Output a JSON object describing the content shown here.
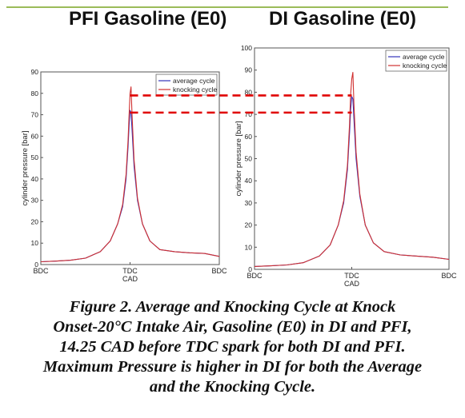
{
  "chart_data": [
    {
      "type": "line",
      "title": "PFI Gasoline (E0)",
      "xlabel": "CAD",
      "ylabel": "cylinder pressure [bar]",
      "x_ticks": [
        "BDC",
        "TDC",
        "BDC"
      ],
      "xlim": [
        -180,
        180
      ],
      "ylim": [
        0,
        90
      ],
      "y_ticks": [
        0,
        10,
        20,
        30,
        40,
        50,
        60,
        70,
        80,
        90
      ],
      "legend_position": "top-right",
      "grid": false,
      "x": [
        -180,
        -150,
        -120,
        -90,
        -60,
        -40,
        -25,
        -15,
        -8,
        -4,
        -2,
        0,
        2,
        4,
        8,
        15,
        25,
        40,
        60,
        90,
        120,
        150,
        180
      ],
      "series": [
        {
          "name": "average cycle",
          "color": "#3333bb",
          "values": [
            1.3,
            1.6,
            2.0,
            3.0,
            6.0,
            11,
            19,
            27,
            40,
            55,
            65,
            72,
            71,
            63,
            46,
            30,
            19,
            11,
            7,
            6,
            5.5,
            5.2,
            3.8
          ]
        },
        {
          "name": "knocking cycle",
          "color": "#d03030",
          "values": [
            1.3,
            1.6,
            2.0,
            3.0,
            6.0,
            11,
            19,
            28,
            42,
            58,
            70,
            80,
            83,
            70,
            49,
            31,
            19,
            11,
            7,
            6,
            5.5,
            5.2,
            3.8
          ]
        }
      ]
    },
    {
      "type": "line",
      "title": "DI Gasoline (E0)",
      "xlabel": "CAD",
      "ylabel": "cylinder pressure [bar]",
      "x_ticks": [
        "BDC",
        "TDC",
        "BDC"
      ],
      "xlim": [
        -180,
        180
      ],
      "ylim": [
        0,
        100
      ],
      "y_ticks": [
        0,
        10,
        20,
        30,
        40,
        50,
        60,
        70,
        80,
        90,
        100
      ],
      "legend_position": "top-right",
      "grid": false,
      "x": [
        -180,
        -150,
        -120,
        -90,
        -60,
        -40,
        -25,
        -15,
        -8,
        -4,
        -2,
        0,
        2,
        4,
        8,
        15,
        25,
        40,
        60,
        90,
        120,
        150,
        180
      ],
      "series": [
        {
          "name": "average cycle",
          "color": "#3333bb",
          "values": [
            1.3,
            1.6,
            2.0,
            3.0,
            6.0,
            11,
            20,
            30,
            45,
            62,
            72,
            78,
            77,
            68,
            50,
            33,
            20,
            12,
            8,
            6.5,
            6,
            5.5,
            4.5
          ]
        },
        {
          "name": "knocking cycle",
          "color": "#d03030",
          "values": [
            1.3,
            1.6,
            2.0,
            3.0,
            6.0,
            11,
            20,
            31,
            47,
            66,
            79,
            86,
            89,
            75,
            53,
            34,
            20,
            12,
            8,
            6.5,
            6,
            5.5,
            4.5
          ]
        }
      ]
    }
  ],
  "comparison_lines": {
    "color": "#e00000",
    "values": [
      79,
      71
    ]
  },
  "caption": [
    "Figure 2. Average and Knocking Cycle at Knock",
    "Onset-20°C Intake Air, Gasoline (E0) in DI and PFI,",
    "14.25 CAD before TDC spark for both DI and PFI.",
    "Maximum Pressure is higher in DI for both the Average",
    "and the Knocking Cycle."
  ]
}
